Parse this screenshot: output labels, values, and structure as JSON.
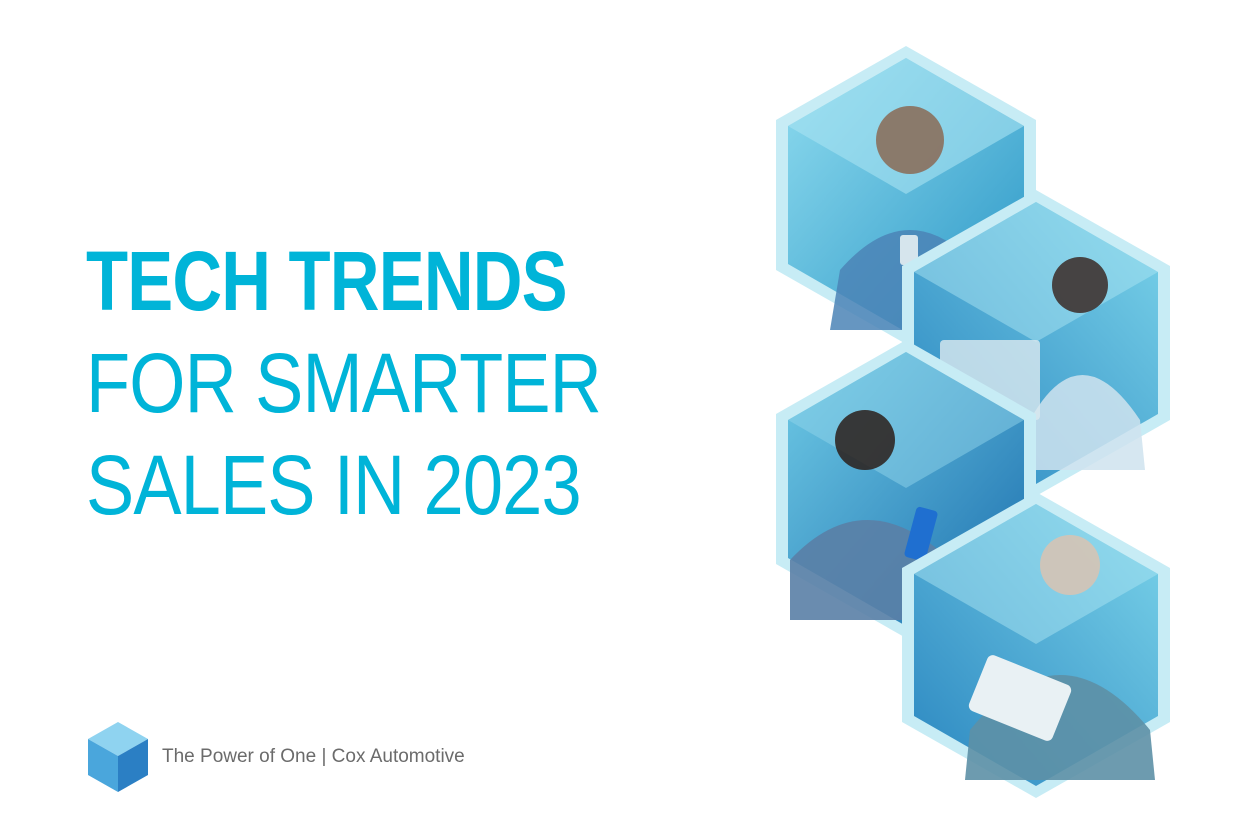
{
  "headline": {
    "line1": "TECH TRENDS",
    "line2": "FOR SMARTER",
    "line3": "SALES IN 2023"
  },
  "footer": {
    "tagline": "The Power of One | Cox Automotive",
    "logo_icon": "cube-icon"
  },
  "collage": {
    "items": [
      {
        "subject": "man-with-phone-photo"
      },
      {
        "subject": "woman-with-laptop-photo"
      },
      {
        "subject": "woman-with-phone-photo"
      },
      {
        "subject": "man-with-tablet-photo"
      }
    ]
  },
  "colors": {
    "headline": "#00b4d8",
    "hex_light": "#9ee0ef",
    "hex_mid": "#3fbcdc",
    "hex_dark": "#1f7fb8",
    "footer_text": "#6b6b6b"
  }
}
